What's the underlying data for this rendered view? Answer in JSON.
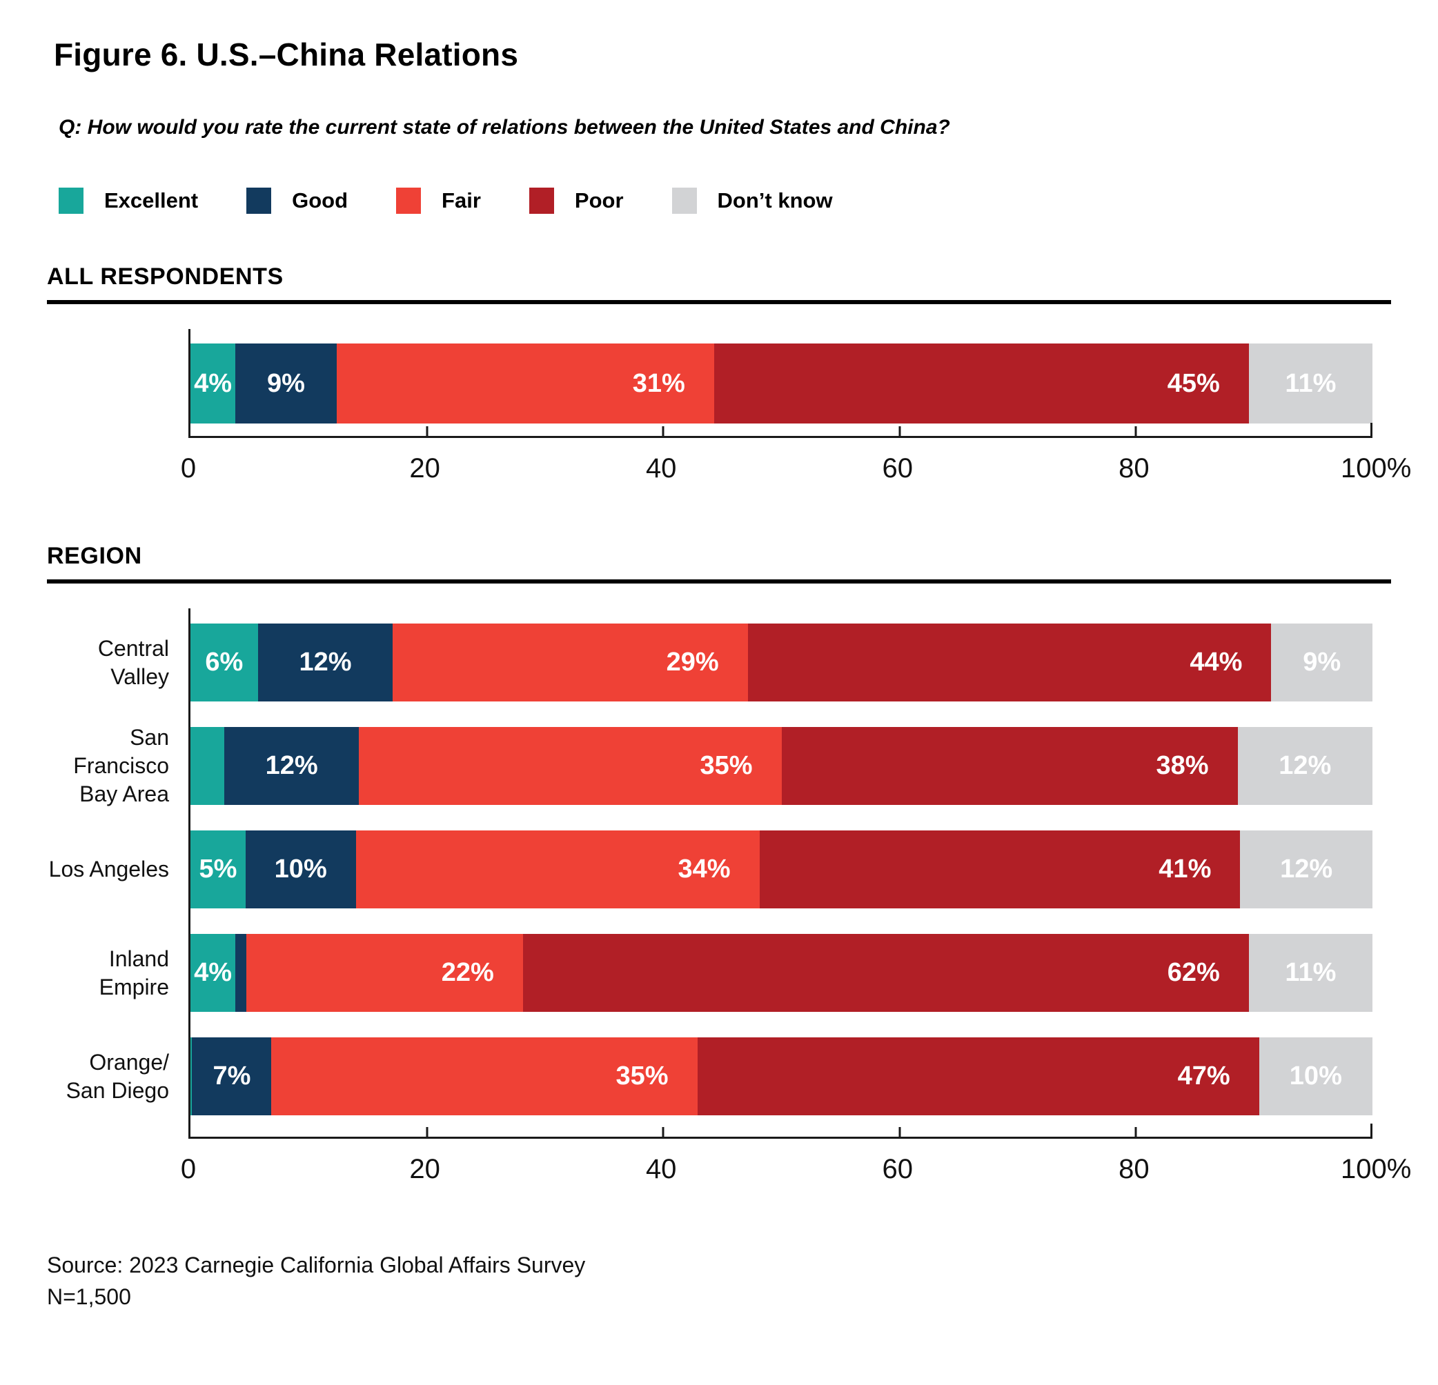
{
  "title": "Figure 6. U.S.–China Relations",
  "question": "Q: How would you rate the current state of relations between the United States and China?",
  "source_line1": "Source: 2023 Carnegie California Global Affairs Survey",
  "source_line2": "N=1,500",
  "chart_data": {
    "type": "bar",
    "subtype": "horizontal-stacked-percent",
    "unit": "%",
    "legend": [
      {
        "name": "Excellent",
        "color": "#18A79B"
      },
      {
        "name": "Good",
        "color": "#123A5E"
      },
      {
        "name": "Fair",
        "color": "#EF4136"
      },
      {
        "name": "Poor",
        "color": "#B11F26"
      },
      {
        "name": "Don’t know",
        "color": "#D2D3D5"
      }
    ],
    "label_align": [
      "center",
      "center",
      "right",
      "right",
      "center"
    ],
    "axis": {
      "range": [
        0,
        100
      ],
      "ticks": [
        0,
        20,
        40,
        60,
        80,
        100
      ],
      "tick_labels": [
        "0",
        "20",
        "40",
        "60",
        "80",
        "100%"
      ],
      "grid": false
    },
    "groups": [
      {
        "heading": "ALL RESPONDENTS",
        "rows": [
          {
            "label_lines": [],
            "values": [
              4,
              9,
              31,
              45,
              11
            ],
            "value_labels": [
              "4%",
              "9%",
              "31%",
              "45%",
              "11%"
            ]
          }
        ]
      },
      {
        "heading": "REGION",
        "rows": [
          {
            "label_lines": [
              "Central Valley"
            ],
            "values": [
              6,
              12,
              29,
              44,
              9
            ],
            "value_labels": [
              "6%",
              "12%",
              "29%",
              "44%",
              "9%"
            ]
          },
          {
            "label_lines": [
              "San Francisco",
              "Bay Area"
            ],
            "values": [
              3,
              12,
              35,
              38,
              12
            ],
            "value_labels": [
              "",
              "12%",
              "35%",
              "38%",
              "12%"
            ]
          },
          {
            "label_lines": [
              "Los Angeles"
            ],
            "values": [
              5,
              10,
              34,
              41,
              12
            ],
            "value_labels": [
              "5%",
              "10%",
              "34%",
              "41%",
              "12%"
            ]
          },
          {
            "label_lines": [
              "Inland Empire"
            ],
            "values": [
              4,
              1,
              22,
              62,
              11
            ],
            "value_labels": [
              "4%",
              "",
              "22%",
              "62%",
              "11%"
            ]
          },
          {
            "label_lines": [
              "Orange/",
              "San Diego"
            ],
            "values": [
              0.15,
              7,
              35,
              47,
              10
            ],
            "value_labels": [
              "",
              "7%",
              "35%",
              "47%",
              "10%"
            ]
          }
        ]
      }
    ]
  }
}
